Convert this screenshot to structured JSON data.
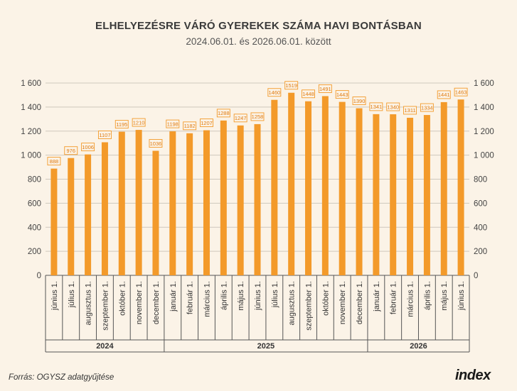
{
  "chart_data": {
    "type": "bar",
    "title": "ELHELYEZÉSRE VÁRÓ GYEREKEK SZÁMA HAVI BONTÁSBAN",
    "subtitle": "2024.06.01. és 2026.06.01. között",
    "categories": [
      "június 1.",
      "július 1.",
      "augusztus 1.",
      "szeptember 1.",
      "október 1.",
      "november 1.",
      "december 1.",
      "január 1.",
      "február 1.",
      "március 1.",
      "április 1.",
      "május 1.",
      "június 1.",
      "július 1.",
      "augusztus 1.",
      "szeptember 1.",
      "október 1.",
      "november 1.",
      "december 1.",
      "január 1.",
      "február 1.",
      "március 1.",
      "április 1.",
      "május 1.",
      "június 1."
    ],
    "values": [
      888,
      976,
      1006,
      1107,
      1195,
      1210,
      1036,
      1198,
      1182,
      1207,
      1288,
      1247,
      1258,
      1460,
      1519,
      1448,
      1491,
      1443,
      1390,
      1341,
      1340,
      1311,
      1334,
      1441,
      1463
    ],
    "years": [
      {
        "label": "2024",
        "count": 7
      },
      {
        "label": "2025",
        "count": 12
      },
      {
        "label": "2026",
        "count": 6
      }
    ],
    "ylim": [
      0,
      1600
    ],
    "yticks": [
      0,
      200,
      400,
      600,
      800,
      1000,
      1200,
      1400,
      1600
    ],
    "ytick_labels": [
      "0",
      "200",
      "400",
      "600",
      "800",
      "1 000",
      "1 200",
      "1 400",
      "1 600"
    ],
    "grid": true,
    "colors": {
      "bar": "#f39a2a",
      "label_border": "#f39a2a",
      "label_text": "#e07b10",
      "grid": "#cfc8bd"
    }
  },
  "footer": {
    "source": "Forrás: OGYSZ adatgyűjtése",
    "logo": "index"
  }
}
